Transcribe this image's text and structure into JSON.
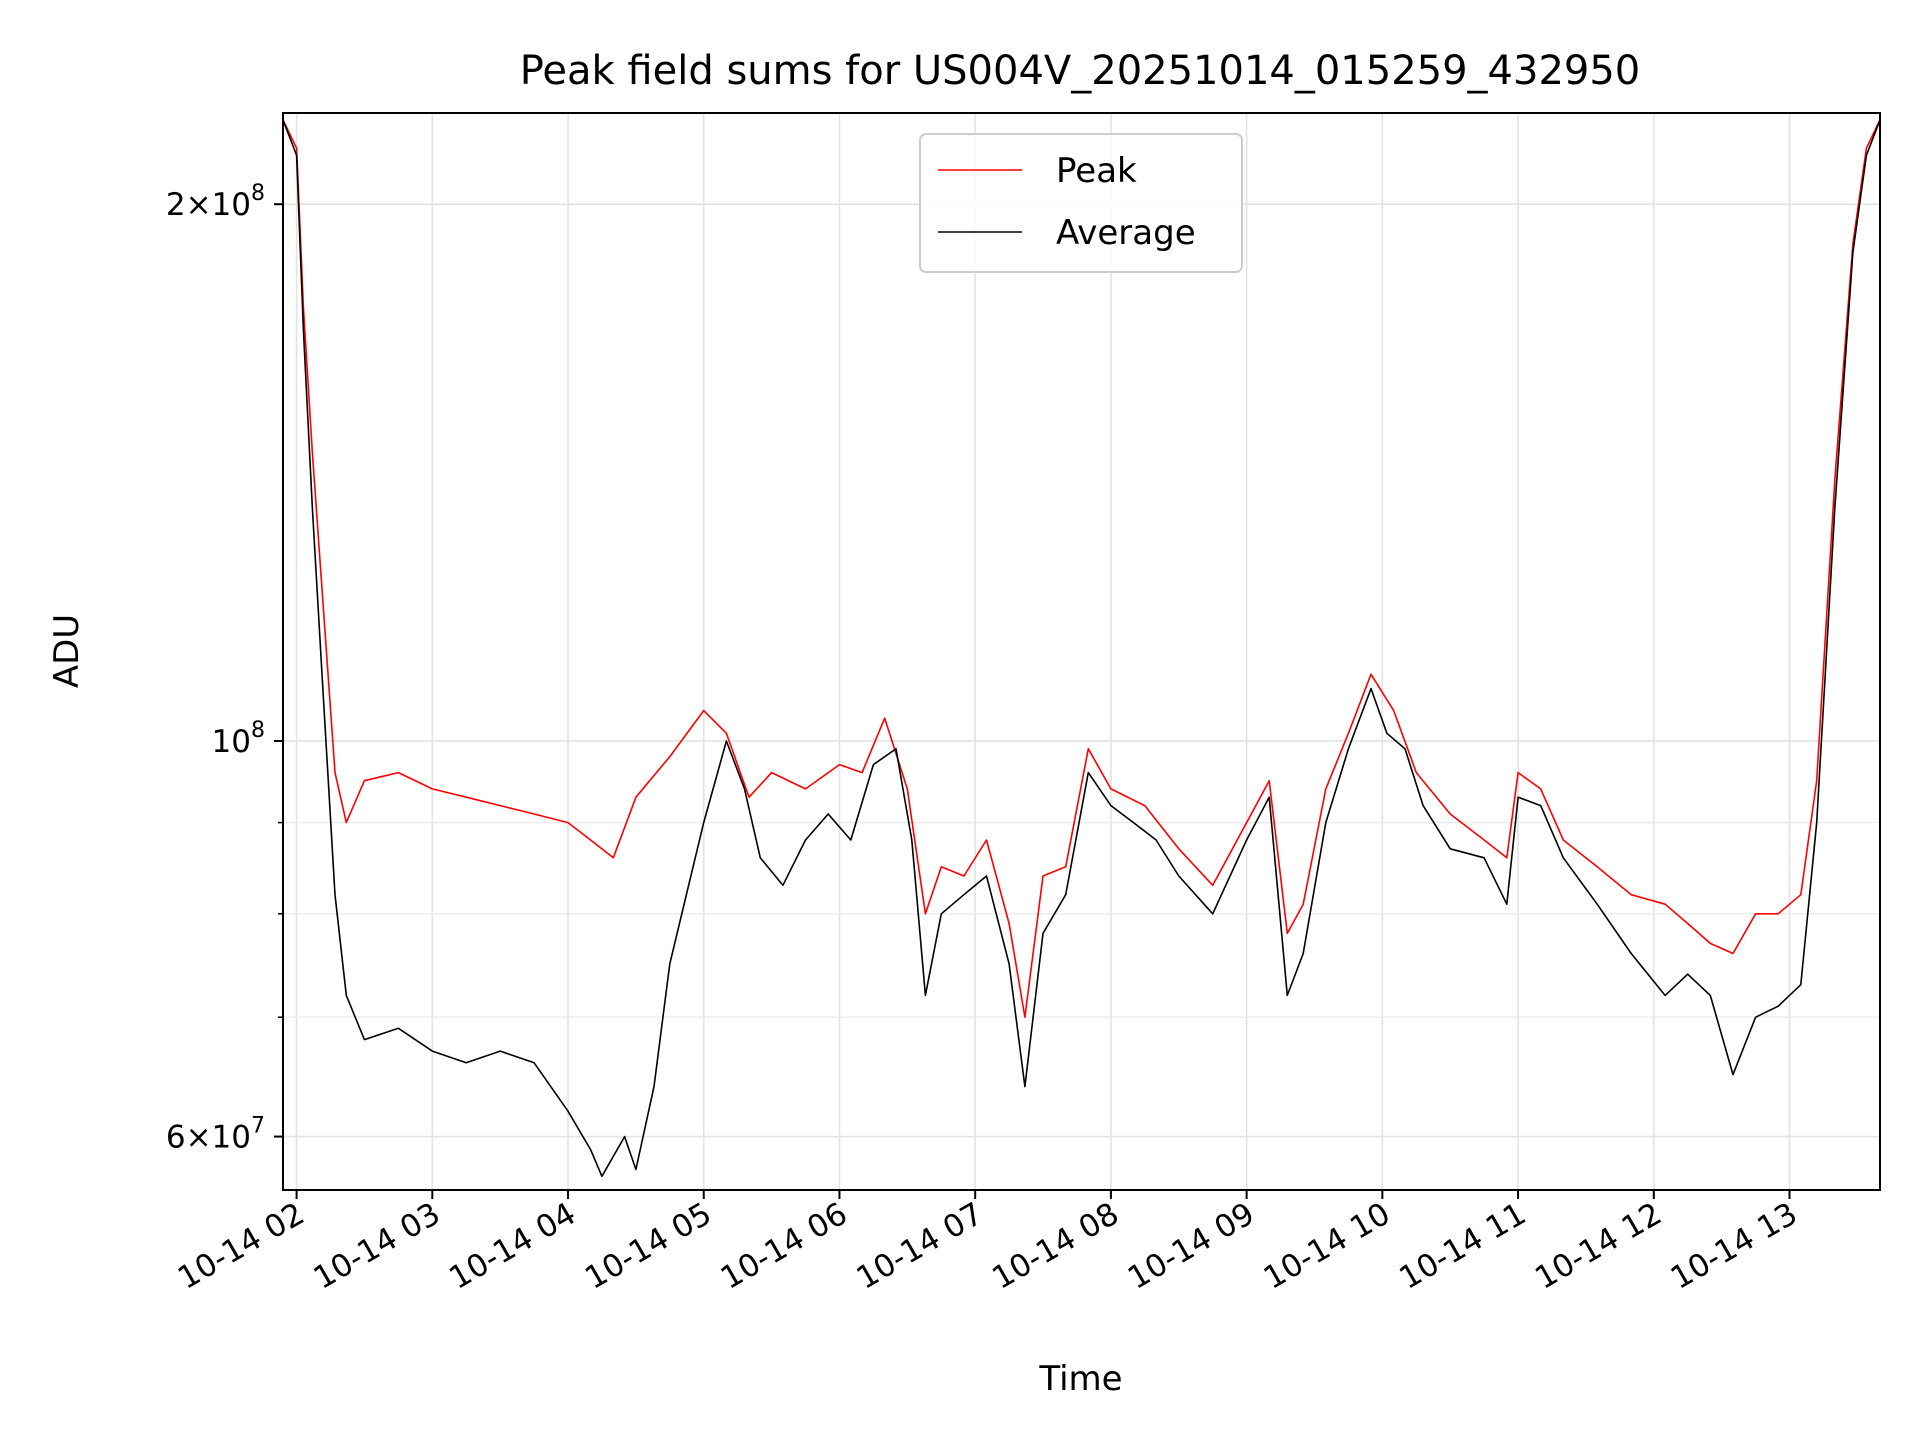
{
  "chart_data": {
    "type": "line",
    "title": "Peak field sums for US004V_20251014_015259_432950",
    "xlabel": "Time",
    "ylabel": "ADU",
    "y_scale": "log",
    "ylim": [
      56000000,
      225000000
    ],
    "xlim": [
      "10-14 01:54",
      "10-14 13:40"
    ],
    "grid": true,
    "legend": {
      "placement": "top-center",
      "entries": [
        "Peak",
        "Average"
      ]
    },
    "x_ticks": [
      {
        "label": "10-14 02",
        "time": "10-14 02:00"
      },
      {
        "label": "10-14 03",
        "time": "10-14 03:00"
      },
      {
        "label": "10-14 04",
        "time": "10-14 04:00"
      },
      {
        "label": "10-14 05",
        "time": "10-14 05:00"
      },
      {
        "label": "10-14 06",
        "time": "10-14 06:00"
      },
      {
        "label": "10-14 07",
        "time": "10-14 07:00"
      },
      {
        "label": "10-14 08",
        "time": "10-14 08:00"
      },
      {
        "label": "10-14 09",
        "time": "10-14 09:00"
      },
      {
        "label": "10-14 10",
        "time": "10-14 10:00"
      },
      {
        "label": "10-14 11",
        "time": "10-14 11:00"
      },
      {
        "label": "10-14 12",
        "time": "10-14 12:00"
      },
      {
        "label": "10-14 13",
        "time": "10-14 13:00"
      }
    ],
    "y_major_ticks": [
      {
        "value": 60000000,
        "mantissa": "6",
        "base": "10",
        "exp": "7"
      },
      {
        "value": 100000000,
        "mantissa": "",
        "base": "10",
        "exp": "8"
      },
      {
        "value": 200000000,
        "mantissa": "2",
        "base": "10",
        "exp": "8"
      }
    ],
    "y_minor_values": [
      70000000,
      80000000,
      90000000
    ],
    "series": [
      {
        "name": "Peak",
        "color": "#ff0000",
        "points": [
          [
            "10-14 01:54",
            223000000
          ],
          [
            "10-14 02:00",
            215000000
          ],
          [
            "10-14 02:03",
            175000000
          ],
          [
            "10-14 02:07",
            145000000
          ],
          [
            "10-14 02:12",
            118000000
          ],
          [
            "10-14 02:17",
            96000000
          ],
          [
            "10-14 02:22",
            90000000
          ],
          [
            "10-14 02:30",
            95000000
          ],
          [
            "10-14 02:45",
            96000000
          ],
          [
            "10-14 03:00",
            94000000
          ],
          [
            "10-14 03:15",
            93000000
          ],
          [
            "10-14 03:30",
            92000000
          ],
          [
            "10-14 03:45",
            91000000
          ],
          [
            "10-14 04:00",
            90000000
          ],
          [
            "10-14 04:10",
            88000000
          ],
          [
            "10-14 04:20",
            86000000
          ],
          [
            "10-14 04:30",
            93000000
          ],
          [
            "10-14 04:45",
            98000000
          ],
          [
            "10-14 05:00",
            104000000
          ],
          [
            "10-14 05:10",
            101000000
          ],
          [
            "10-14 05:20",
            93000000
          ],
          [
            "10-14 05:30",
            96000000
          ],
          [
            "10-14 05:45",
            94000000
          ],
          [
            "10-14 06:00",
            97000000
          ],
          [
            "10-14 06:10",
            96000000
          ],
          [
            "10-14 06:20",
            103000000
          ],
          [
            "10-14 06:30",
            94000000
          ],
          [
            "10-14 06:38",
            80000000
          ],
          [
            "10-14 06:45",
            85000000
          ],
          [
            "10-14 06:55",
            84000000
          ],
          [
            "10-14 07:05",
            88000000
          ],
          [
            "10-14 07:15",
            79000000
          ],
          [
            "10-14 07:22",
            70000000
          ],
          [
            "10-14 07:30",
            84000000
          ],
          [
            "10-14 07:40",
            85000000
          ],
          [
            "10-14 07:50",
            99000000
          ],
          [
            "10-14 08:00",
            94000000
          ],
          [
            "10-14 08:15",
            92000000
          ],
          [
            "10-14 08:30",
            87000000
          ],
          [
            "10-14 08:45",
            83000000
          ],
          [
            "10-14 09:00",
            90000000
          ],
          [
            "10-14 09:10",
            95000000
          ],
          [
            "10-14 09:18",
            78000000
          ],
          [
            "10-14 09:25",
            81000000
          ],
          [
            "10-14 09:35",
            94000000
          ],
          [
            "10-14 09:45",
            101000000
          ],
          [
            "10-14 09:55",
            109000000
          ],
          [
            "10-14 10:05",
            104000000
          ],
          [
            "10-14 10:15",
            96000000
          ],
          [
            "10-14 10:30",
            91000000
          ],
          [
            "10-14 10:45",
            88000000
          ],
          [
            "10-14 10:55",
            86000000
          ],
          [
            "10-14 11:00",
            96000000
          ],
          [
            "10-14 11:10",
            94000000
          ],
          [
            "10-14 11:20",
            88000000
          ],
          [
            "10-14 11:35",
            85000000
          ],
          [
            "10-14 11:50",
            82000000
          ],
          [
            "10-14 12:05",
            81000000
          ],
          [
            "10-14 12:15",
            79000000
          ],
          [
            "10-14 12:25",
            77000000
          ],
          [
            "10-14 12:35",
            76000000
          ],
          [
            "10-14 12:45",
            80000000
          ],
          [
            "10-14 12:55",
            80000000
          ],
          [
            "10-14 13:05",
            82000000
          ],
          [
            "10-14 13:12",
            95000000
          ],
          [
            "10-14 13:20",
            140000000
          ],
          [
            "10-14 13:28",
            190000000
          ],
          [
            "10-14 13:34",
            215000000
          ],
          [
            "10-14 13:40",
            223000000
          ]
        ]
      },
      {
        "name": "Average",
        "color": "#000000",
        "points": [
          [
            "10-14 01:54",
            223000000
          ],
          [
            "10-14 02:00",
            213000000
          ],
          [
            "10-14 02:03",
            170000000
          ],
          [
            "10-14 02:07",
            135000000
          ],
          [
            "10-14 02:12",
            105000000
          ],
          [
            "10-14 02:17",
            82000000
          ],
          [
            "10-14 02:22",
            72000000
          ],
          [
            "10-14 02:30",
            68000000
          ],
          [
            "10-14 02:45",
            69000000
          ],
          [
            "10-14 03:00",
            67000000
          ],
          [
            "10-14 03:15",
            66000000
          ],
          [
            "10-14 03:30",
            67000000
          ],
          [
            "10-14 03:45",
            66000000
          ],
          [
            "10-14 04:00",
            62000000
          ],
          [
            "10-14 04:10",
            59000000
          ],
          [
            "10-14 04:15",
            57000000
          ],
          [
            "10-14 04:25",
            60000000
          ],
          [
            "10-14 04:30",
            57500000
          ],
          [
            "10-14 04:38",
            64000000
          ],
          [
            "10-14 04:45",
            75000000
          ],
          [
            "10-14 05:00",
            90000000
          ],
          [
            "10-14 05:10",
            100000000
          ],
          [
            "10-14 05:18",
            94000000
          ],
          [
            "10-14 05:25",
            86000000
          ],
          [
            "10-14 05:35",
            83000000
          ],
          [
            "10-14 05:45",
            88000000
          ],
          [
            "10-14 05:55",
            91000000
          ],
          [
            "10-14 06:05",
            88000000
          ],
          [
            "10-14 06:15",
            97000000
          ],
          [
            "10-14 06:25",
            99000000
          ],
          [
            "10-14 06:32",
            88000000
          ],
          [
            "10-14 06:38",
            72000000
          ],
          [
            "10-14 06:45",
            80000000
          ],
          [
            "10-14 06:55",
            82000000
          ],
          [
            "10-14 07:05",
            84000000
          ],
          [
            "10-14 07:15",
            75000000
          ],
          [
            "10-14 07:22",
            64000000
          ],
          [
            "10-14 07:30",
            78000000
          ],
          [
            "10-14 07:40",
            82000000
          ],
          [
            "10-14 07:50",
            96000000
          ],
          [
            "10-14 08:00",
            92000000
          ],
          [
            "10-14 08:10",
            90000000
          ],
          [
            "10-14 08:20",
            88000000
          ],
          [
            "10-14 08:30",
            84000000
          ],
          [
            "10-14 08:45",
            80000000
          ],
          [
            "10-14 09:00",
            88000000
          ],
          [
            "10-14 09:10",
            93000000
          ],
          [
            "10-14 09:18",
            72000000
          ],
          [
            "10-14 09:25",
            76000000
          ],
          [
            "10-14 09:35",
            90000000
          ],
          [
            "10-14 09:45",
            99000000
          ],
          [
            "10-14 09:55",
            107000000
          ],
          [
            "10-14 10:02",
            101000000
          ],
          [
            "10-14 10:10",
            99000000
          ],
          [
            "10-14 10:18",
            92000000
          ],
          [
            "10-14 10:30",
            87000000
          ],
          [
            "10-14 10:45",
            86000000
          ],
          [
            "10-14 10:55",
            81000000
          ],
          [
            "10-14 11:00",
            93000000
          ],
          [
            "10-14 11:10",
            92000000
          ],
          [
            "10-14 11:20",
            86000000
          ],
          [
            "10-14 11:35",
            81000000
          ],
          [
            "10-14 11:50",
            76000000
          ],
          [
            "10-14 12:05",
            72000000
          ],
          [
            "10-14 12:15",
            74000000
          ],
          [
            "10-14 12:25",
            72000000
          ],
          [
            "10-14 12:35",
            65000000
          ],
          [
            "10-14 12:45",
            70000000
          ],
          [
            "10-14 12:55",
            71000000
          ],
          [
            "10-14 13:05",
            73000000
          ],
          [
            "10-14 13:12",
            90000000
          ],
          [
            "10-14 13:20",
            135000000
          ],
          [
            "10-14 13:28",
            188000000
          ],
          [
            "10-14 13:34",
            213000000
          ],
          [
            "10-14 13:40",
            223000000
          ]
        ]
      }
    ]
  }
}
